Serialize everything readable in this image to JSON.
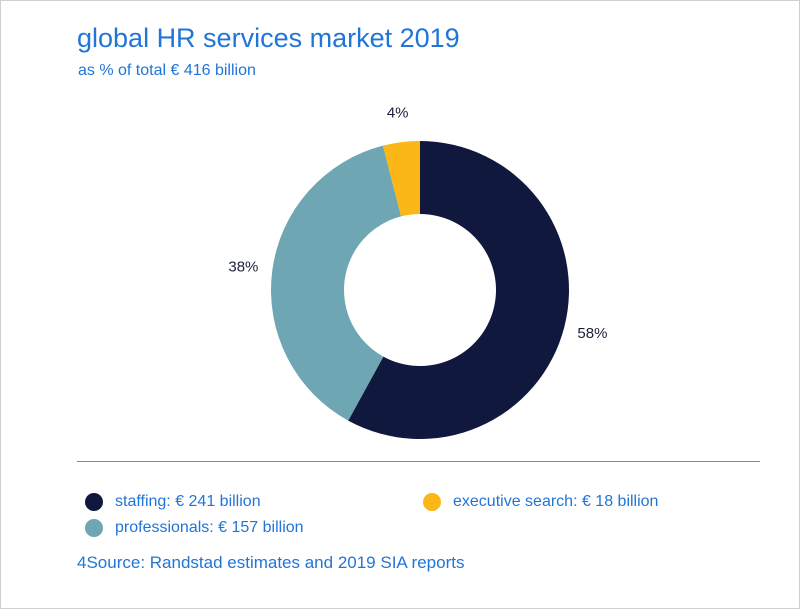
{
  "chart_data": {
    "type": "pie",
    "variant": "donut",
    "title": "global HR services market 2019",
    "subtitle": "as % of total € 416 billion",
    "slices": [
      {
        "name": "staffing",
        "value": 58,
        "label": "58%",
        "color": "#11183d"
      },
      {
        "name": "professionals",
        "value": 38,
        "label": "38%",
        "color": "#6fa6b4"
      },
      {
        "name": "executive search",
        "value": 4,
        "label": "4%",
        "color": "#fbb617"
      }
    ],
    "legend": [
      {
        "text": "staffing: € 241 billion",
        "color": "#11183d"
      },
      {
        "text": "professionals: € 157 billion",
        "color": "#6fa6b4"
      },
      {
        "text": "executive search: € 18 billion",
        "color": "#fbb617"
      }
    ],
    "source": "4Source: Randstad estimates and 2019 SIA reports"
  },
  "colors": {
    "accent": "#2175d9",
    "label_text": "#1b1f3a"
  }
}
